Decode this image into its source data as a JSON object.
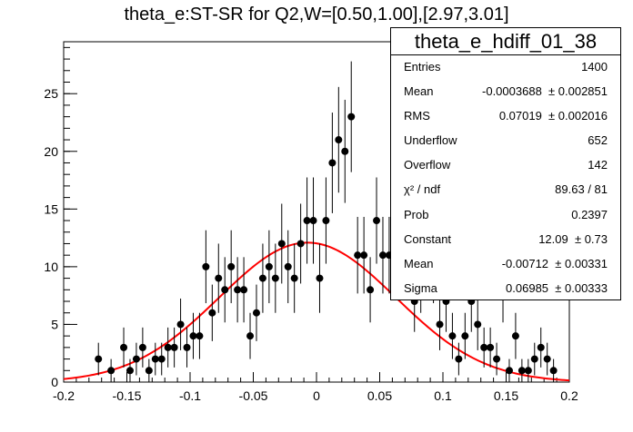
{
  "chart_data": {
    "type": "scatter",
    "title": "theta_e:ST-SR for Q2,W=[0.50,1.00],[2.97,3.01]",
    "xlabel": "",
    "ylabel": "",
    "xlim": [
      -0.2,
      0.2
    ],
    "ylim": [
      0,
      29.5
    ],
    "x_ticks": [
      "-0.2",
      "-0.15",
      "-0.1",
      "-0.05",
      "0",
      "0.05",
      "0.1",
      "0.15",
      "0.2"
    ],
    "y_ticks": [
      "0",
      "5",
      "10",
      "15",
      "20",
      "25"
    ],
    "bin_width": 0.005,
    "series": [
      {
        "type": "histogram-points",
        "x": [
          -0.1725,
          -0.1625,
          -0.1525,
          -0.1475,
          -0.1425,
          -0.1375,
          -0.1325,
          -0.1275,
          -0.1225,
          -0.1175,
          -0.1125,
          -0.1075,
          -0.1025,
          -0.0975,
          -0.0925,
          -0.0875,
          -0.0825,
          -0.0775,
          -0.0725,
          -0.0675,
          -0.0625,
          -0.0575,
          -0.0525,
          -0.0475,
          -0.0425,
          -0.0375,
          -0.0325,
          -0.0275,
          -0.0225,
          -0.0175,
          -0.0125,
          -0.0075,
          -0.0025,
          0.0025,
          0.0075,
          0.0125,
          0.0175,
          0.0225,
          0.0275,
          0.0325,
          0.0375,
          0.0425,
          0.0475,
          0.0525,
          0.0575,
          0.0625,
          0.0675,
          0.0725,
          0.0775,
          0.0825,
          0.0875,
          0.0925,
          0.0975,
          0.1025,
          0.1075,
          0.1125,
          0.1175,
          0.1225,
          0.1275,
          0.1325,
          0.1375,
          0.1425,
          0.1475,
          0.1525,
          0.1575,
          0.1625,
          0.1675,
          0.1725,
          0.1775,
          0.1825,
          0.1875
        ],
        "y": [
          2,
          1,
          3,
          1,
          2,
          3,
          1,
          2,
          2,
          3,
          3,
          5,
          3,
          4,
          4,
          10,
          6,
          9,
          8,
          10,
          8,
          8,
          4,
          6,
          9,
          10,
          9,
          12,
          10,
          9,
          12,
          14,
          14,
          9,
          14,
          19,
          21,
          20,
          23,
          11,
          11,
          8,
          14,
          11,
          11,
          15,
          15,
          13,
          7,
          9,
          12,
          10,
          5,
          7,
          4,
          2,
          4,
          7,
          5,
          3,
          3,
          2,
          8,
          1,
          4,
          1,
          1,
          2,
          3,
          2,
          1
        ],
        "errors": [
          1.41,
          1.0,
          1.73,
          1.0,
          1.41,
          1.73,
          1.0,
          1.41,
          1.41,
          1.73,
          1.73,
          2.24,
          1.73,
          2.0,
          2.0,
          3.16,
          2.45,
          3.0,
          2.83,
          3.16,
          2.83,
          2.83,
          2.0,
          2.45,
          3.0,
          3.16,
          3.0,
          3.46,
          3.16,
          3.0,
          3.46,
          3.74,
          3.74,
          3.0,
          3.74,
          4.36,
          4.58,
          4.47,
          4.8,
          3.32,
          3.32,
          2.83,
          3.74,
          3.32,
          3.32,
          3.87,
          3.87,
          3.61,
          2.65,
          3.0,
          3.46,
          3.16,
          2.24,
          2.65,
          2.0,
          1.41,
          2.0,
          2.65,
          2.24,
          1.73,
          1.73,
          1.41,
          2.83,
          1.0,
          2.0,
          1.0,
          1.0,
          1.41,
          1.73,
          1.41,
          1.0
        ],
        "color": "#000000"
      },
      {
        "type": "gaussian-fit",
        "constant": 12.09,
        "mean": -0.00712,
        "sigma": 0.06985,
        "color": "#ff0000"
      }
    ],
    "stats": {
      "name": "theta_e_hdiff_01_38",
      "rows": [
        {
          "label": "Entries",
          "value": "1400"
        },
        {
          "label": "Mean",
          "value": "-0.0003688  ± 0.002851"
        },
        {
          "label": "RMS",
          "value": "0.07019  ± 0.002016"
        },
        {
          "label": "Underflow",
          "value": "652"
        },
        {
          "label": "Overflow",
          "value": "142"
        },
        {
          "label": "χ² / ndf",
          "value": "89.63 / 81"
        },
        {
          "label": "Prob",
          "value": "0.2397"
        },
        {
          "label": "Constant",
          "value": "12.09  ± 0.73"
        },
        {
          "label": "Mean",
          "value": "-0.00712  ± 0.00331"
        },
        {
          "label": "Sigma",
          "value": "0.06985  ± 0.00333"
        }
      ]
    }
  }
}
